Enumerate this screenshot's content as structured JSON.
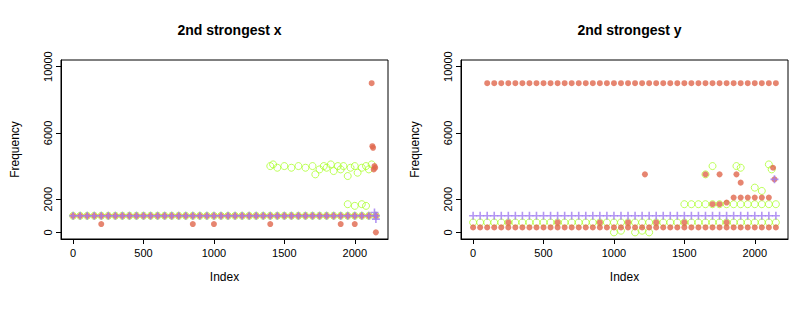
{
  "chart_data": [
    {
      "type": "scatter",
      "title": "2nd strongest x",
      "x_label": "Index",
      "y_label": "Frequency",
      "xlim": [
        -86,
        2236
      ],
      "xticks": [
        0,
        500,
        1000,
        1500,
        2000
      ],
      "ylim": [
        -400,
        10400
      ],
      "yticks": [
        0,
        2000,
        6000,
        10000
      ],
      "grid": false,
      "series": [
        {
          "color": "#adff2f",
          "marker": "open_circle",
          "x": [
            0,
            50,
            100,
            150,
            200,
            250,
            300,
            350,
            400,
            450,
            500,
            550,
            600,
            650,
            700,
            750,
            800,
            850,
            900,
            950,
            1000,
            1050,
            1100,
            1150,
            1200,
            1250,
            1300,
            1350,
            1400,
            1450,
            1500,
            1550,
            1600,
            1650,
            1700,
            1750,
            1800,
            1850,
            1900,
            1950,
            2000,
            2050,
            2100,
            2150,
            1400,
            1420,
            1450,
            1500,
            1550,
            1600,
            1650,
            1700,
            1720,
            1750,
            1780,
            1800,
            1830,
            1850,
            1880,
            1900,
            1920,
            1950,
            1970,
            2000,
            2020,
            2050,
            2080,
            2100,
            2120,
            1950,
            2000,
            2050,
            2080
          ],
          "values": [
            1000,
            1000,
            1000,
            1000,
            1000,
            1000,
            1000,
            1000,
            1000,
            1000,
            1000,
            1000,
            1000,
            1000,
            1000,
            1000,
            1000,
            1000,
            1000,
            1000,
            1000,
            1000,
            1000,
            1000,
            1000,
            1000,
            1000,
            1000,
            1000,
            1000,
            1000,
            1000,
            1000,
            1000,
            1000,
            1000,
            1000,
            1000,
            1000,
            1000,
            1000,
            1000,
            1000,
            1000,
            4000,
            4100,
            3900,
            4000,
            3900,
            4000,
            3900,
            4000,
            3500,
            3800,
            4000,
            3900,
            4100,
            3700,
            4000,
            3800,
            4000,
            3400,
            3900,
            4000,
            3600,
            3900,
            4000,
            3800,
            4100,
            1700,
            1600,
            1700,
            1600
          ]
        },
        {
          "color": "#e0674c",
          "marker": "filled_circle",
          "x": [
            0,
            50,
            100,
            150,
            200,
            250,
            300,
            350,
            400,
            450,
            500,
            550,
            600,
            650,
            700,
            750,
            800,
            850,
            900,
            950,
            1000,
            1050,
            1100,
            1150,
            1200,
            1250,
            1300,
            1350,
            1400,
            1450,
            1500,
            1550,
            1600,
            1650,
            1700,
            1750,
            1800,
            1850,
            1900,
            1950,
            2000,
            2050,
            2100,
            2150,
            200,
            850,
            1000,
            1400,
            1900,
            2000,
            2120,
            2125,
            2130,
            2135,
            2140,
            2145,
            2150
          ],
          "values": [
            1000,
            1000,
            1000,
            1000,
            1000,
            1000,
            1000,
            1000,
            1000,
            1000,
            1000,
            1000,
            1000,
            1000,
            1000,
            1000,
            1000,
            1000,
            1000,
            1000,
            1000,
            1000,
            1000,
            1000,
            1000,
            1000,
            1000,
            1000,
            1000,
            1000,
            1000,
            1000,
            1000,
            1000,
            1000,
            1000,
            1000,
            1000,
            1000,
            1000,
            1000,
            1000,
            1000,
            1000,
            500,
            500,
            500,
            500,
            500,
            500,
            9000,
            5200,
            5100,
            3800,
            4000,
            3900,
            0
          ]
        },
        {
          "color": "#a07cf0",
          "marker": "plus",
          "x": [
            0,
            50,
            100,
            150,
            200,
            250,
            300,
            350,
            400,
            450,
            500,
            550,
            600,
            650,
            700,
            750,
            800,
            850,
            900,
            950,
            1000,
            1050,
            1100,
            1150,
            1200,
            1250,
            1300,
            1350,
            1400,
            1450,
            1500,
            1550,
            1600,
            1650,
            1700,
            1750,
            1800,
            1850,
            1900,
            1950,
            2000,
            2050,
            2100,
            2150,
            2140,
            2150
          ],
          "values": [
            1000,
            1000,
            1000,
            1000,
            1000,
            1000,
            1000,
            1000,
            1000,
            1000,
            1000,
            1000,
            1000,
            1000,
            1000,
            1000,
            1000,
            1000,
            1000,
            1000,
            1000,
            1000,
            1000,
            1000,
            1000,
            1000,
            1000,
            1000,
            1000,
            1000,
            1000,
            1000,
            1000,
            1000,
            1000,
            1000,
            1000,
            1000,
            1000,
            1000,
            1000,
            1000,
            1000,
            1000,
            1200,
            800
          ]
        }
      ]
    },
    {
      "type": "scatter",
      "title": "2nd strongest y",
      "x_label": "Index",
      "y_label": "Frequency",
      "xlim": [
        -86,
        2236
      ],
      "xticks": [
        0,
        500,
        1000,
        1500,
        2000
      ],
      "ylim": [
        -400,
        10400
      ],
      "yticks": [
        0,
        2000,
        6000,
        10000
      ],
      "grid": false,
      "series": [
        {
          "color": "#adff2f",
          "marker": "open_circle",
          "x": [
            0,
            50,
            100,
            150,
            200,
            250,
            300,
            350,
            400,
            450,
            500,
            550,
            600,
            650,
            700,
            750,
            800,
            850,
            900,
            950,
            1000,
            1050,
            1100,
            1150,
            1200,
            1250,
            1300,
            1350,
            1400,
            1450,
            1500,
            1550,
            1600,
            1650,
            1700,
            1750,
            1800,
            1850,
            1900,
            1950,
            2000,
            2050,
            2100,
            2150,
            1000,
            1050,
            1150,
            1200,
            1250,
            1500,
            1550,
            1600,
            1650,
            1700,
            1750,
            1800,
            1850,
            1900,
            1950,
            2000,
            2050,
            2100,
            2150,
            1650,
            1700,
            1870,
            1900,
            2100,
            2120,
            2000,
            2050
          ],
          "values": [
            600,
            600,
            600,
            600,
            600,
            600,
            600,
            600,
            600,
            600,
            600,
            600,
            600,
            600,
            600,
            600,
            600,
            600,
            600,
            600,
            600,
            600,
            600,
            600,
            600,
            600,
            600,
            600,
            600,
            600,
            600,
            600,
            600,
            600,
            600,
            600,
            600,
            600,
            600,
            600,
            600,
            600,
            600,
            600,
            0,
            100,
            0,
            100,
            0,
            1700,
            1700,
            1700,
            1700,
            1700,
            1700,
            1700,
            1700,
            1700,
            1700,
            1700,
            1700,
            1700,
            1700,
            3500,
            4000,
            4000,
            3900,
            4100,
            3800,
            2700,
            2500
          ]
        },
        {
          "color": "#e0674c",
          "marker": "filled_circle",
          "x": [
            100,
            150,
            200,
            250,
            300,
            350,
            400,
            450,
            500,
            550,
            600,
            650,
            700,
            750,
            800,
            850,
            900,
            950,
            1000,
            1050,
            1100,
            1150,
            1200,
            1250,
            1300,
            1350,
            1400,
            1450,
            1500,
            1550,
            1600,
            1650,
            1700,
            1750,
            1800,
            1850,
            1900,
            1950,
            2000,
            2050,
            2100,
            2150,
            0,
            50,
            100,
            150,
            200,
            250,
            300,
            350,
            400,
            450,
            500,
            550,
            600,
            650,
            700,
            750,
            800,
            850,
            900,
            950,
            1000,
            1050,
            1100,
            1150,
            1200,
            1250,
            1300,
            1350,
            1400,
            1450,
            1500,
            1550,
            1600,
            1650,
            1700,
            1750,
            1800,
            1850,
            1900,
            1950,
            2000,
            2050,
            2100,
            2150,
            250,
            600,
            900,
            1100,
            1300,
            1500,
            1800,
            1220,
            1650,
            1750,
            1870,
            1900,
            1700,
            1750,
            1800,
            1850,
            1900,
            1950,
            2000,
            2050,
            2100,
            2130,
            2140
          ],
          "values": [
            9000,
            9000,
            9000,
            9000,
            9000,
            9000,
            9000,
            9000,
            9000,
            9000,
            9000,
            9000,
            9000,
            9000,
            9000,
            9000,
            9000,
            9000,
            9000,
            9000,
            9000,
            9000,
            9000,
            9000,
            9000,
            9000,
            9000,
            9000,
            9000,
            9000,
            9000,
            9000,
            9000,
            9000,
            9000,
            9000,
            9000,
            9000,
            9000,
            9000,
            9000,
            9000,
            300,
            300,
            300,
            300,
            300,
            300,
            300,
            300,
            300,
            300,
            300,
            300,
            300,
            300,
            300,
            300,
            300,
            300,
            300,
            300,
            300,
            300,
            300,
            300,
            300,
            300,
            300,
            300,
            300,
            300,
            300,
            300,
            300,
            300,
            300,
            300,
            300,
            300,
            300,
            300,
            300,
            300,
            300,
            300,
            600,
            600,
            600,
            600,
            600,
            600,
            600,
            3500,
            3500,
            3500,
            3500,
            3000,
            1700,
            1700,
            1800,
            2100,
            2100,
            2100,
            2100,
            2100,
            2100,
            3900,
            3200
          ]
        },
        {
          "color": "#a07cf0",
          "marker": "plus",
          "x": [
            0,
            50,
            100,
            150,
            200,
            250,
            300,
            350,
            400,
            450,
            500,
            550,
            600,
            650,
            700,
            750,
            800,
            850,
            900,
            950,
            1000,
            1050,
            1100,
            1150,
            1200,
            1250,
            1300,
            1350,
            1400,
            1450,
            1500,
            1550,
            1600,
            1650,
            1700,
            1750,
            1800,
            1850,
            1900,
            1950,
            2000,
            2050,
            2100,
            2150,
            2140
          ],
          "values": [
            1000,
            1000,
            1000,
            1000,
            1000,
            1000,
            1000,
            1000,
            1000,
            1000,
            1000,
            1000,
            1000,
            1000,
            1000,
            1000,
            1000,
            1000,
            1000,
            1000,
            1000,
            1000,
            1000,
            1000,
            1000,
            1000,
            1000,
            1000,
            1000,
            1000,
            1000,
            1000,
            1000,
            1000,
            1000,
            1000,
            1000,
            1000,
            1000,
            1000,
            1000,
            1000,
            1000,
            1000,
            3200
          ]
        }
      ]
    }
  ]
}
